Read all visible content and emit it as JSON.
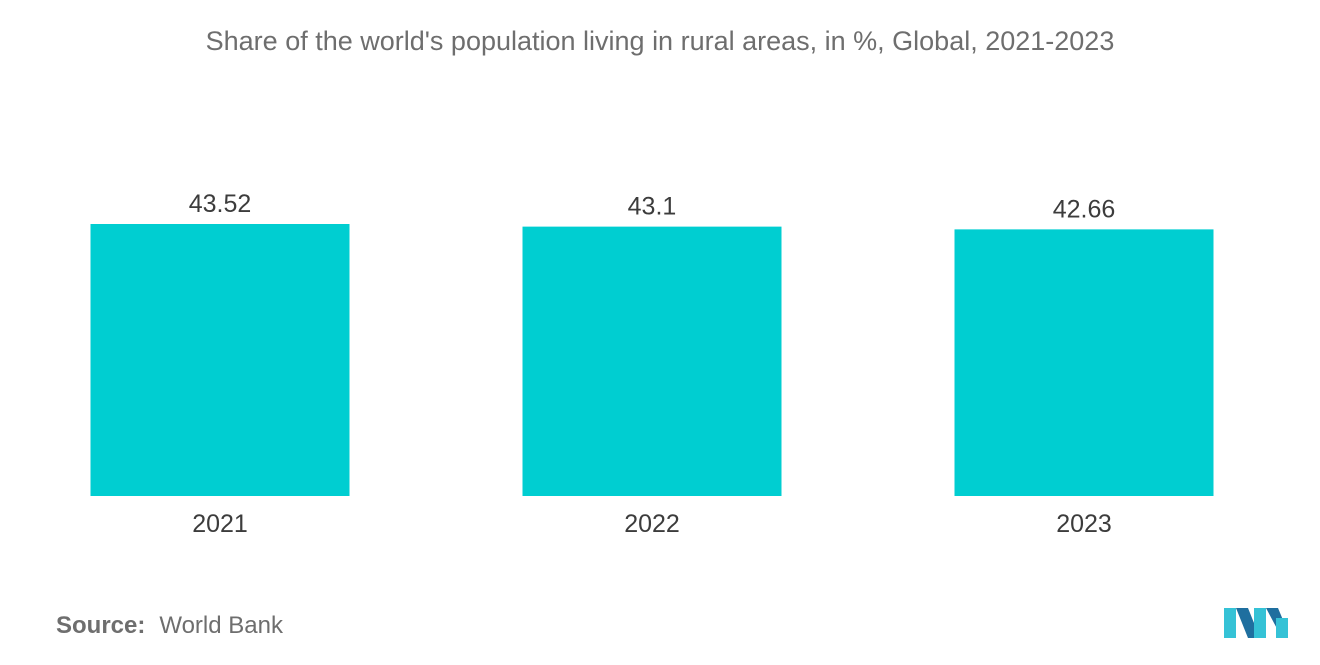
{
  "chart_data": {
    "type": "bar",
    "title": "Share of the world's population living in rural areas, in %, Global, 2021-2023",
    "categories": [
      "2021",
      "2022",
      "2023"
    ],
    "values": [
      43.52,
      43.1,
      42.66
    ],
    "value_labels": [
      "43.52",
      "43.1",
      "42.66"
    ],
    "xlabel": "",
    "ylabel": "",
    "ylim": [
      0,
      43.52
    ],
    "grid": false,
    "legend": "none",
    "bar_color": "#00ced1"
  },
  "footer": {
    "source_label": "Source:",
    "source_value": "World Bank"
  },
  "colors": {
    "text": "#6e6e6e",
    "label": "#3c3c3c",
    "logo_dark": "#1f6f9f",
    "logo_light": "#35c2d6"
  }
}
